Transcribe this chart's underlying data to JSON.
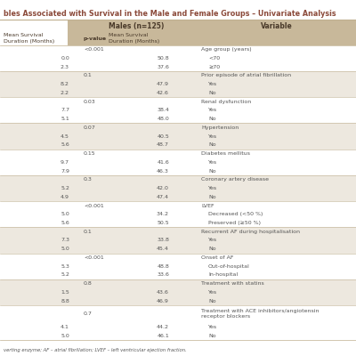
{
  "title": "bles Associated with Survival in the Male and Female Groups – Univariate Analysis",
  "title_color": "#8B4A3A",
  "bg_color": "#FFFFFF",
  "header_bg": "#C8B89A",
  "row_bg_light": "#FFFFFF",
  "row_bg_alt": "#EDE8DF",
  "text_color": "#555555",
  "header_text_color": "#4A3A2A",
  "divider_color": "#C0B090",
  "col_header_males": "Males (n=125)",
  "col_header_variable": "Variable",
  "sub_col0": "Mean Survival\nDuration (Months)",
  "sub_col1": "p-value",
  "sub_col2": "Mean Survival\nDuration (Months)",
  "footer": "verting enzyme; AF – atrial fibrillation; LVEF – left ventricular ejection fraction.",
  "groups": [
    {
      "header_label": "Age group (years)",
      "pvalue": "<0.001",
      "rows": [
        {
          "label": "<70",
          "fval": "0.0",
          "mval": "50.8"
        },
        {
          "label": "≥70",
          "fval": "2.3",
          "mval": "37.6"
        }
      ]
    },
    {
      "header_label": "Prior episode of atrial fibrillation",
      "pvalue": "0.1",
      "rows": [
        {
          "label": "Yes",
          "fval": "8.2",
          "mval": "47.9"
        },
        {
          "label": "No",
          "fval": "2.2",
          "mval": "42.6"
        }
      ]
    },
    {
      "header_label": "Renal dysfunction",
      "pvalue": "0.03",
      "rows": [
        {
          "label": "Yes",
          "fval": "7.7",
          "mval": "38.4"
        },
        {
          "label": "No",
          "fval": "5.1",
          "mval": "48.0"
        }
      ]
    },
    {
      "header_label": "Hypertension",
      "pvalue": "0.07",
      "rows": [
        {
          "label": "Yes",
          "fval": "4.5",
          "mval": "40.5"
        },
        {
          "label": "No",
          "fval": "5.6",
          "mval": "48.7"
        }
      ]
    },
    {
      "header_label": "Diabetes mellitus",
      "pvalue": "0.15",
      "rows": [
        {
          "label": "Yes",
          "fval": "9.7",
          "mval": "41.6"
        },
        {
          "label": "No",
          "fval": "7.9",
          "mval": "46.3"
        }
      ]
    },
    {
      "header_label": "Coronary artery disease",
      "pvalue": "0.3",
      "rows": [
        {
          "label": "Yes",
          "fval": "5.2",
          "mval": "42.0"
        },
        {
          "label": "No",
          "fval": "4.9",
          "mval": "47.4"
        }
      ]
    },
    {
      "header_label": "LVEF",
      "pvalue": "<0.001",
      "rows": [
        {
          "label": "Decreased (<50 %)",
          "fval": "5.0",
          "mval": "34.2"
        },
        {
          "label": "Preserved (≥50 %)",
          "fval": "5.6",
          "mval": "50.5"
        }
      ]
    },
    {
      "header_label": "Recurrent AF during hospitalisation",
      "pvalue": "0.1",
      "rows": [
        {
          "label": "Yes",
          "fval": "7.3",
          "mval": "33.8"
        },
        {
          "label": "No",
          "fval": "5.0",
          "mval": "45.4"
        }
      ]
    },
    {
      "header_label": "Onset of AF",
      "pvalue": "<0.001",
      "rows": [
        {
          "label": "Out-of-hospital",
          "fval": "5.3",
          "mval": "48.8"
        },
        {
          "label": "In-hospital",
          "fval": "5.2",
          "mval": "33.6"
        }
      ]
    },
    {
      "header_label": "Treatment with statins",
      "pvalue": "0.8",
      "rows": [
        {
          "label": "Yes",
          "fval": "1.5",
          "mval": "43.6"
        },
        {
          "label": "No",
          "fval": "8.8",
          "mval": "46.9"
        }
      ]
    },
    {
      "header_label": "Treatment with ACE inhibitors/angiotensin\nreceptor blockers",
      "pvalue": "0.7",
      "rows": [
        {
          "label": "Yes",
          "fval": "4.1",
          "mval": "44.2"
        },
        {
          "label": "No",
          "fval": "5.0",
          "mval": "46.1"
        }
      ]
    }
  ]
}
